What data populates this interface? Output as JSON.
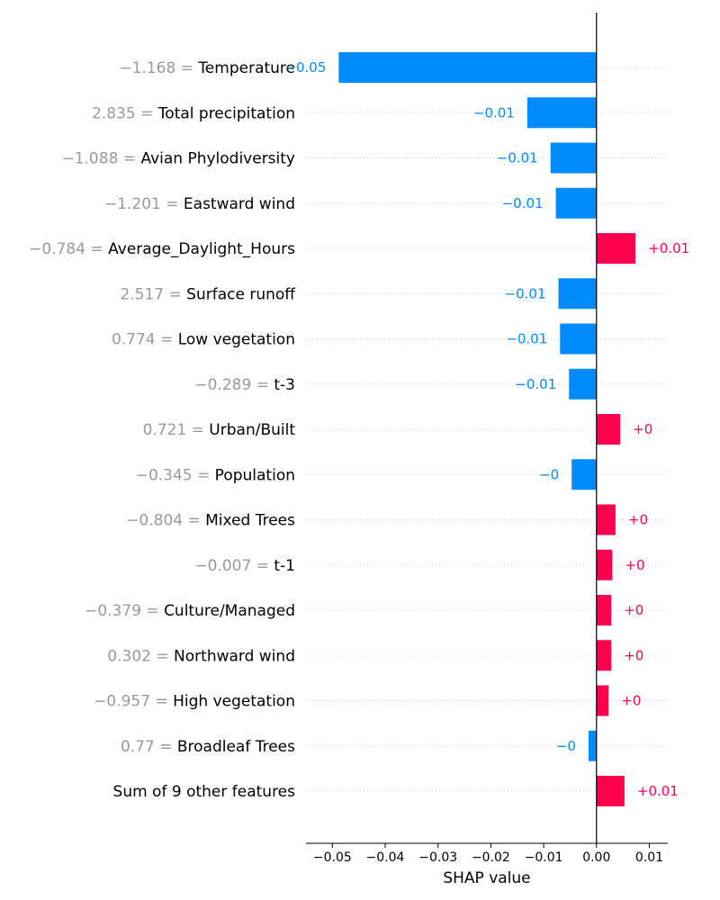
{
  "chart_data": {
    "type": "bar",
    "orientation": "horizontal",
    "xlabel": "SHAP value",
    "xlim": [
      -0.055,
      0.0135
    ],
    "x_ticks": [
      -0.05,
      -0.04,
      -0.03,
      -0.02,
      -0.01,
      0.0,
      0.01
    ],
    "x_tick_labels": [
      "−0.05",
      "−0.04",
      "−0.03",
      "−0.02",
      "−0.01",
      "0.00",
      "0.01"
    ],
    "separator": " = ",
    "grid": "dotted horizontal row guides",
    "colors": {
      "positive": "#ff0051",
      "negative": "#008bfb",
      "feature_value": "#999999"
    },
    "features": [
      {
        "value": "−1.168",
        "name": "Temperature",
        "shap": -0.0488,
        "label": "−0.05"
      },
      {
        "value": "2.835",
        "name": "Total precipitation",
        "shap": -0.0131,
        "label": "−0.01"
      },
      {
        "value": "−1.088",
        "name": "Avian Phylodiversity",
        "shap": -0.0087,
        "label": "−0.01"
      },
      {
        "value": "−1.201",
        "name": "Eastward wind",
        "shap": -0.0077,
        "label": "−0.01"
      },
      {
        "value": "−0.784",
        "name": "Average_Daylight_Hours",
        "shap": 0.0074,
        "label": "+0.01"
      },
      {
        "value": "2.517",
        "name": "Surface runoff",
        "shap": -0.0072,
        "label": "−0.01"
      },
      {
        "value": "0.774",
        "name": "Low vegetation",
        "shap": -0.0069,
        "label": "−0.01"
      },
      {
        "value": "−0.289",
        "name": "t-3",
        "shap": -0.0052,
        "label": "−0.01"
      },
      {
        "value": "0.721",
        "name": "Urban/Built",
        "shap": 0.0045,
        "label": "+0"
      },
      {
        "value": "−0.345",
        "name": "Population",
        "shap": -0.0047,
        "label": "−0"
      },
      {
        "value": "−0.804",
        "name": "Mixed Trees",
        "shap": 0.0036,
        "label": "+0"
      },
      {
        "value": "−0.007",
        "name": "t-1",
        "shap": 0.003,
        "label": "+0"
      },
      {
        "value": "−0.379",
        "name": "Culture/Managed",
        "shap": 0.0028,
        "label": "+0"
      },
      {
        "value": "0.302",
        "name": "Northward wind",
        "shap": 0.0028,
        "label": "+0"
      },
      {
        "value": "−0.957",
        "name": "High vegetation",
        "shap": 0.0023,
        "label": "+0"
      },
      {
        "value": "0.77",
        "name": "Broadleaf Trees",
        "shap": -0.0015,
        "label": "−0"
      },
      {
        "value": "",
        "name": "Sum of 9 other features",
        "shap": 0.0053,
        "label": "+0.01"
      }
    ]
  }
}
